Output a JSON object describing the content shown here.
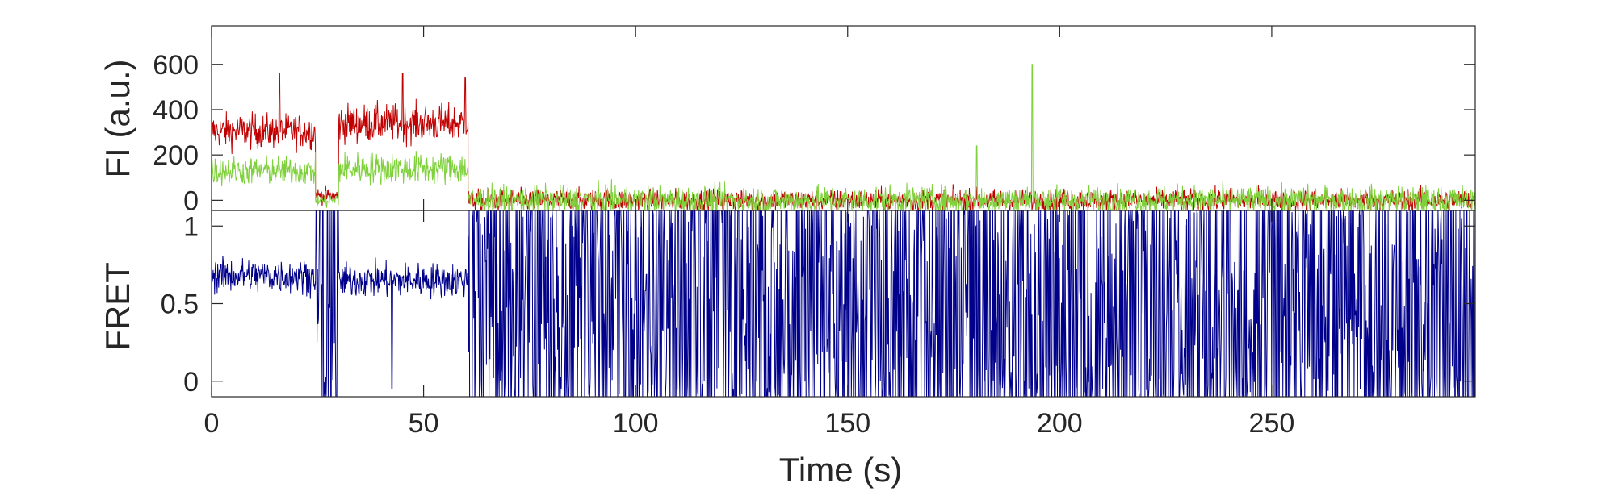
{
  "chart_data": [
    {
      "type": "line",
      "panel": "top",
      "ylabel": "FI (a.u.)",
      "xlim": [
        0,
        298
      ],
      "ylim": [
        -45,
        770
      ],
      "yticks": [
        0,
        200,
        400,
        600
      ],
      "ytick_labels": [
        "0",
        "200",
        "400",
        "600"
      ],
      "series": [
        {
          "color": "#C00000",
          "segments": [
            {
              "x": [
                0,
                24.5
              ],
              "level": 305,
              "noise": 55
            },
            {
              "x": [
                24.5,
                30
              ],
              "level": 20,
              "noise": 25
            },
            {
              "x": [
                30,
                60.5
              ],
              "level": 340,
              "noise": 60
            },
            {
              "x": [
                60.5,
                298
              ],
              "level": 0,
              "noise": 35
            }
          ],
          "spikes": [
            {
              "x": 16,
              "y": 560
            },
            {
              "x": 45,
              "y": 560
            },
            {
              "x": 59.8,
              "y": 540
            }
          ]
        },
        {
          "color": "#7FD13B",
          "segments": [
            {
              "x": [
                0,
                24.5
              ],
              "level": 130,
              "noise": 45
            },
            {
              "x": [
                24.5,
                30
              ],
              "level": 0,
              "noise": 25
            },
            {
              "x": [
                30,
                60.5
              ],
              "level": 140,
              "noise": 50
            },
            {
              "x": [
                60.5,
                298
              ],
              "level": 0,
              "noise": 45
            }
          ],
          "spikes": [
            {
              "x": 193.5,
              "y": 600
            },
            {
              "x": 180.5,
              "y": 240
            }
          ]
        }
      ]
    },
    {
      "type": "line",
      "panel": "bottom",
      "ylabel": "FRET",
      "xlabel": "Time (s)",
      "xlim": [
        0,
        298
      ],
      "ylim": [
        -0.1,
        1.1
      ],
      "xticks": [
        0,
        50,
        100,
        150,
        200,
        250
      ],
      "xtick_labels": [
        "0",
        "50",
        "100",
        "150",
        "200",
        "250"
      ],
      "yticks": [
        0,
        0.5,
        1
      ],
      "ytick_labels": [
        "0",
        "0.5",
        "1"
      ],
      "series": [
        {
          "color": "#00008B",
          "segments": [
            {
              "x": [
                0,
                24.5
              ],
              "level": 0.68,
              "noise": 0.08
            },
            {
              "x": [
                24.5,
                30
              ],
              "level": 0.5,
              "noise": 0.6
            },
            {
              "x": [
                30,
                60.5
              ],
              "level": 0.65,
              "noise": 0.08
            },
            {
              "x": [
                60.5,
                298
              ],
              "level": 0.45,
              "noise": 0.6
            }
          ],
          "dips": [
            {
              "x": 42.5,
              "y": -0.05
            }
          ]
        }
      ]
    }
  ]
}
